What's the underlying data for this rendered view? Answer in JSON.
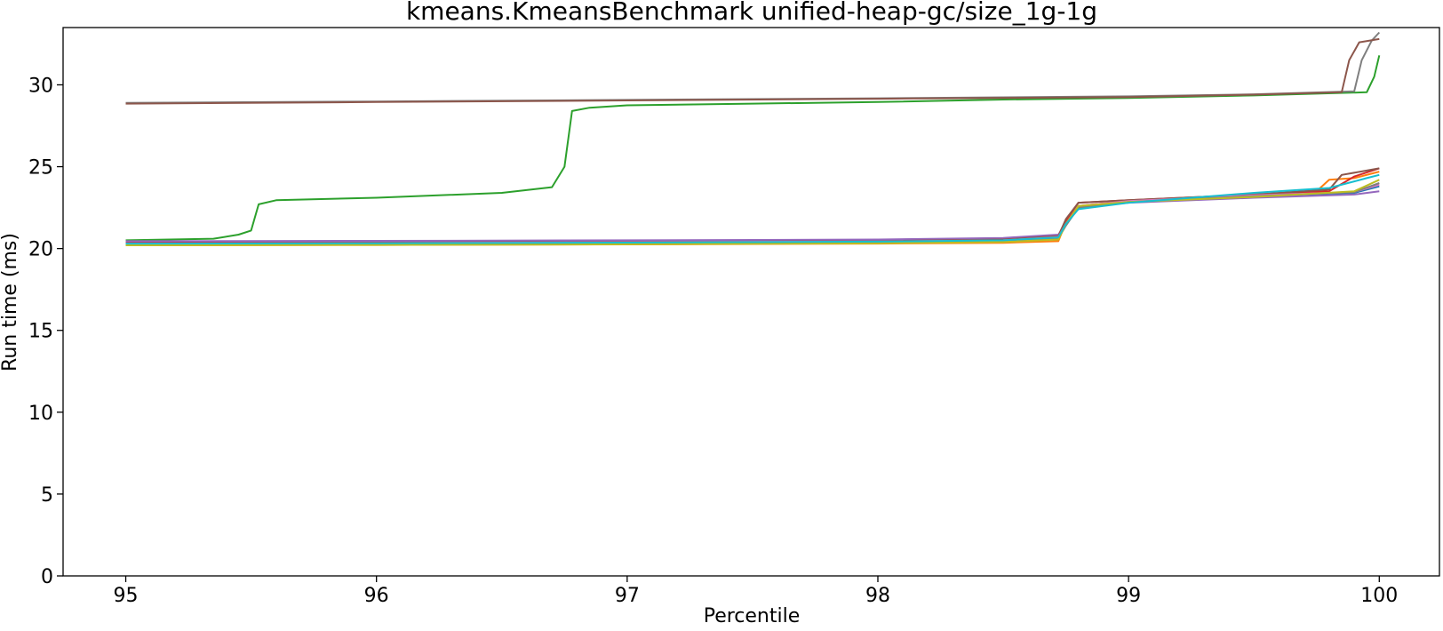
{
  "chart_data": {
    "type": "line",
    "title": "kmeans.KmeansBenchmark unified-heap-gc/size_1g-1g",
    "xlabel": "Percentile",
    "ylabel": "Run time (ms)",
    "xlim": [
      94.75,
      100.24
    ],
    "ylim": [
      0,
      33.5
    ],
    "xticks": [
      95,
      96,
      97,
      98,
      99,
      100
    ],
    "yticks": [
      0,
      5,
      10,
      15,
      20,
      25,
      30
    ],
    "grid": false,
    "series": [
      {
        "color": "#1f77b4",
        "x": [
          95,
          96,
          97,
          98,
          98.5,
          98.72,
          98.75,
          98.8,
          99,
          99.5,
          99.9,
          100
        ],
        "y": [
          20.4,
          20.42,
          20.45,
          20.5,
          20.55,
          20.65,
          21.5,
          22.5,
          22.85,
          23.2,
          23.4,
          23.8
        ]
      },
      {
        "color": "#ff7f0e",
        "x": [
          95,
          96,
          97,
          98,
          98.5,
          98.72,
          98.75,
          98.8,
          99,
          99.5,
          99.75,
          99.8,
          99.9,
          100
        ],
        "y": [
          20.2,
          20.22,
          20.25,
          20.3,
          20.35,
          20.45,
          21.6,
          22.6,
          22.9,
          23.3,
          23.5,
          24.2,
          24.3,
          24.7
        ]
      },
      {
        "color": "#2ca02c",
        "x": [
          95,
          95.35,
          95.45,
          95.5,
          95.53,
          95.6,
          96,
          96.5,
          96.7,
          96.75,
          96.78,
          96.85,
          97,
          97.5,
          98,
          98.5,
          99,
          99.5,
          99.95,
          99.98,
          100
        ],
        "y": [
          20.5,
          20.6,
          20.85,
          21.1,
          22.7,
          22.95,
          23.1,
          23.4,
          23.75,
          25.0,
          28.4,
          28.6,
          28.75,
          28.85,
          28.95,
          29.1,
          29.2,
          29.35,
          29.55,
          30.5,
          31.8
        ]
      },
      {
        "color": "#d62728",
        "x": [
          95,
          96,
          97,
          98,
          98.5,
          98.72,
          98.75,
          98.8,
          99,
          99.5,
          99.8,
          99.9,
          100
        ],
        "y": [
          20.35,
          20.4,
          20.45,
          20.5,
          20.6,
          20.8,
          21.7,
          22.8,
          22.95,
          23.3,
          23.5,
          24.4,
          24.9
        ]
      },
      {
        "color": "#9467bd",
        "x": [
          95,
          96,
          97,
          98,
          98.5,
          98.72,
          98.75,
          98.8,
          99,
          99.5,
          99.9,
          100
        ],
        "y": [
          20.45,
          20.47,
          20.5,
          20.55,
          20.65,
          20.85,
          21.5,
          22.5,
          22.8,
          23.1,
          23.3,
          23.5
        ]
      },
      {
        "color": "#8c564b",
        "x": [
          95,
          96,
          97,
          98,
          98.5,
          98.72,
          98.75,
          98.8,
          99,
          99.5,
          99.8,
          99.85,
          100
        ],
        "y": [
          20.3,
          20.35,
          20.4,
          20.45,
          20.55,
          20.75,
          21.8,
          22.8,
          22.95,
          23.3,
          23.6,
          24.5,
          24.9
        ]
      },
      {
        "color": "#e377c2",
        "x": [
          95,
          96,
          97,
          98,
          98.5,
          98.72,
          98.75,
          98.8,
          99,
          99.5,
          99.9,
          100
        ],
        "y": [
          20.3,
          20.33,
          20.38,
          20.43,
          20.5,
          20.7,
          21.5,
          22.6,
          22.9,
          23.25,
          23.45,
          23.9
        ]
      },
      {
        "color": "#7f7f7f",
        "x": [
          95,
          96,
          97,
          98,
          98.5,
          98.72,
          98.75,
          98.8,
          99,
          99.5,
          99.9,
          100
        ],
        "y": [
          20.25,
          20.28,
          20.32,
          20.38,
          20.45,
          20.62,
          21.4,
          22.5,
          22.85,
          23.2,
          23.45,
          24.0
        ]
      },
      {
        "color": "#bcbd22",
        "x": [
          95,
          96,
          97,
          98,
          98.5,
          98.72,
          98.75,
          98.8,
          99,
          99.5,
          99.9,
          100
        ],
        "y": [
          20.2,
          20.22,
          20.26,
          20.32,
          20.4,
          20.55,
          21.5,
          22.6,
          22.85,
          23.15,
          23.5,
          24.2
        ]
      },
      {
        "color": "#17becf",
        "x": [
          95,
          96,
          97,
          98,
          98.5,
          98.72,
          98.75,
          98.8,
          99,
          99.5,
          99.8,
          99.9,
          99.95,
          100
        ],
        "y": [
          20.3,
          20.32,
          20.36,
          20.42,
          20.5,
          20.68,
          21.5,
          22.4,
          22.8,
          23.4,
          23.7,
          24.1,
          24.3,
          24.5
        ]
      },
      {
        "color": "#7f7f7f",
        "x": [
          95,
          96,
          97,
          98,
          99,
          99.5,
          99.9,
          99.93,
          99.97,
          100
        ],
        "y": [
          28.9,
          28.98,
          29.08,
          29.18,
          29.3,
          29.42,
          29.6,
          31.5,
          32.7,
          33.2
        ]
      },
      {
        "color": "#8c564b",
        "x": [
          95,
          96,
          97,
          98,
          99,
          99.5,
          99.85,
          99.88,
          99.92,
          100
        ],
        "y": [
          28.85,
          28.95,
          29.05,
          29.15,
          29.25,
          29.4,
          29.55,
          31.5,
          32.6,
          32.8
        ]
      }
    ]
  }
}
